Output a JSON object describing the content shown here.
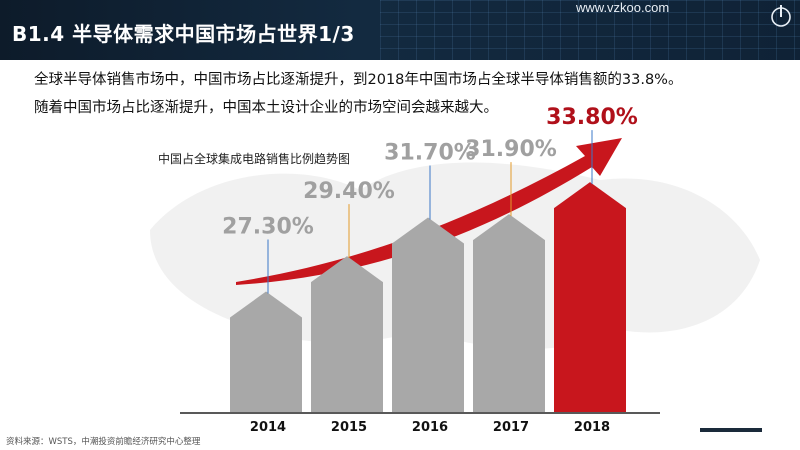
{
  "header": {
    "title": "B1.4 半导体需求中国市场占世界1/3",
    "site_url": "www.vzkoo.com"
  },
  "intro": {
    "line1": "全球半导体销售市场中，中国市场占比逐渐提升，到2018年中国市场占全球半导体销售额的33.8%。",
    "line2": "随着中国市场占比逐渐提升，中国本土设计企业的市场空间会越来越大。"
  },
  "source": "资料来源：WSTS，中潮投资前瞻经济研究中心整理",
  "colors": {
    "bar_gray": "#a8a8a8",
    "bar_highlight": "#c8161d",
    "label_gray": "#a0a0a0",
    "label_highlight": "#b0101a",
    "arrow": "#c8161d"
  },
  "chart_data": {
    "type": "bar",
    "title": "中国占全球集成电路销售比例趋势图",
    "categories": [
      "2014",
      "2015",
      "2016",
      "2017",
      "2018"
    ],
    "values": [
      27.3,
      29.4,
      31.7,
      31.9,
      33.8
    ],
    "value_labels": [
      "27.30%",
      "29.40%",
      "31.70%",
      "31.90%",
      "33.80%"
    ],
    "highlight_index": 4,
    "ylim": [
      0,
      35
    ],
    "grid": false,
    "legend": "none",
    "trend_arrow": true
  }
}
